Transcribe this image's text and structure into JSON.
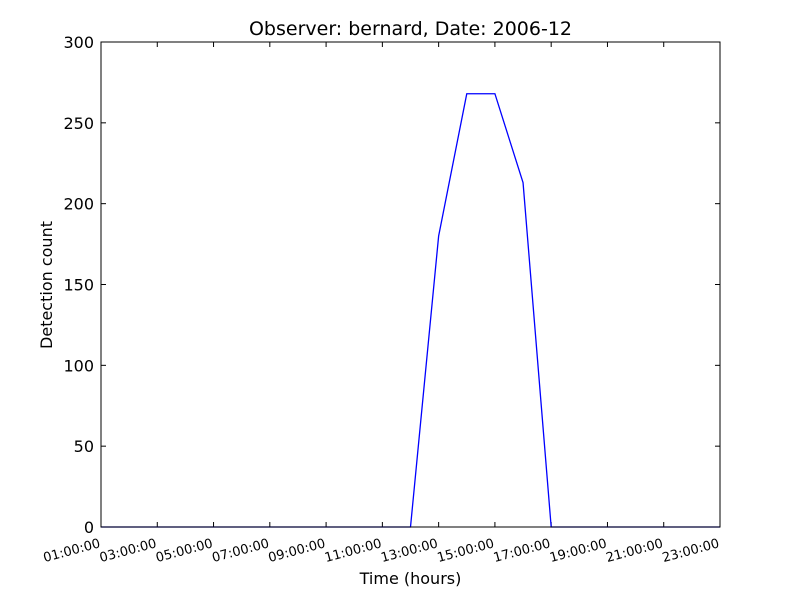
{
  "chart_data": {
    "type": "line",
    "title": "Observer: bernard, Date: 2006-12",
    "xlabel": "Time (hours)",
    "ylabel": "Detection count",
    "ylim": [
      0,
      300
    ],
    "yticks": [
      "0",
      "50",
      "100",
      "150",
      "200",
      "250",
      "300"
    ],
    "xlim": [
      "01:00:00",
      "23:00:00"
    ],
    "xticks": [
      "01:00:00",
      "03:00:00",
      "05:00:00",
      "07:00:00",
      "09:00:00",
      "11:00:00",
      "13:00:00",
      "15:00:00",
      "17:00:00",
      "19:00:00",
      "21:00:00",
      "23:00:00"
    ],
    "grid": false,
    "line_color": "#0000ff",
    "series": [
      {
        "x": [
          "01:00:00",
          "02:00:00",
          "03:00:00",
          "04:00:00",
          "05:00:00",
          "06:00:00",
          "07:00:00",
          "08:00:00",
          "09:00:00",
          "10:00:00",
          "11:00:00",
          "12:00:00",
          "13:00:00",
          "14:00:00",
          "15:00:00",
          "16:00:00",
          "17:00:00",
          "18:00:00",
          "19:00:00",
          "20:00:00",
          "21:00:00",
          "22:00:00",
          "23:00:00"
        ],
        "values": [
          0,
          0,
          0,
          0,
          0,
          0,
          0,
          0,
          0,
          0,
          0,
          0,
          180,
          268,
          268,
          213,
          0,
          0,
          0,
          0,
          0,
          0,
          0
        ]
      }
    ]
  }
}
